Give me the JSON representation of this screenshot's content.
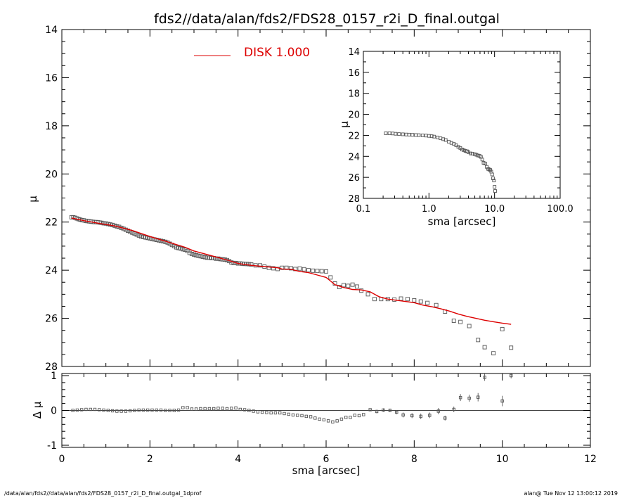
{
  "title": "fds2//data/alan/fds2/FDS28_0157_r2i_D_final.outgal",
  "footer_left": "/data/alan/fds2//data/alan/fds2/FDS28_0157_r2i_D_final.outgal_1dprof",
  "footer_right": "alan@  Tue Nov 12 13:00:12 2019",
  "colors": {
    "model": "#dd0000",
    "axes": "#000000",
    "points": "#555555"
  },
  "chart_data": [
    {
      "type": "scatter",
      "panel": "main",
      "title": "fds2//data/alan/fds2/FDS28_0157_r2i_D_final.outgal",
      "xlabel": "",
      "ylabel": "μ",
      "xlim": [
        0,
        12
      ],
      "ylim": [
        28,
        14
      ],
      "yinverted": true,
      "y_ticks": [
        "14",
        "16",
        "18",
        "20",
        "22",
        "24",
        "26",
        "28"
      ],
      "legend": {
        "label": "DISK  1.000",
        "placement": "top-left"
      },
      "series": [
        {
          "name": "data",
          "marker": "square",
          "x": [
            0.22,
            0.26,
            0.3,
            0.34,
            0.38,
            0.42,
            0.46,
            0.5,
            0.54,
            0.58,
            0.62,
            0.66,
            0.7,
            0.74,
            0.78,
            0.82,
            0.86,
            0.9,
            0.95,
            1.0,
            1.05,
            1.1,
            1.15,
            1.2,
            1.25,
            1.3,
            1.35,
            1.4,
            1.45,
            1.5,
            1.55,
            1.6,
            1.65,
            1.7,
            1.75,
            1.8,
            1.85,
            1.9,
            1.95,
            2.0,
            2.05,
            2.1,
            2.15,
            2.2,
            2.25,
            2.3,
            2.35,
            2.4,
            2.45,
            2.5,
            2.55,
            2.6,
            2.65,
            2.7,
            2.75,
            2.8,
            2.85,
            2.9,
            2.95,
            3.0,
            3.05,
            3.1,
            3.15,
            3.2,
            3.25,
            3.3,
            3.35,
            3.4,
            3.45,
            3.5,
            3.55,
            3.6,
            3.65,
            3.7,
            3.75,
            3.8,
            3.85,
            3.9,
            3.95,
            4.0,
            4.05,
            4.1,
            4.15,
            4.2,
            4.25,
            4.3,
            4.4,
            4.5,
            4.6,
            4.7,
            4.8,
            4.9,
            5.0,
            5.1,
            5.2,
            5.3,
            5.4,
            5.5,
            5.6,
            5.7,
            5.8,
            5.9,
            6.0,
            6.1,
            6.2,
            6.3,
            6.4,
            6.5,
            6.6,
            6.7,
            6.8,
            6.95,
            7.1,
            7.25,
            7.4,
            7.55,
            7.7,
            7.85,
            8.0,
            8.15,
            8.3,
            8.5,
            8.7,
            8.9,
            9.05,
            9.25,
            9.45,
            9.6,
            9.8,
            10.0,
            10.2
          ],
          "y": [
            21.8,
            21.8,
            21.82,
            21.85,
            21.88,
            21.9,
            21.92,
            21.93,
            21.95,
            21.96,
            21.97,
            21.98,
            21.99,
            22.0,
            22.0,
            22.01,
            22.02,
            22.03,
            22.05,
            22.06,
            22.08,
            22.1,
            22.12,
            22.15,
            22.18,
            22.2,
            22.24,
            22.28,
            22.32,
            22.36,
            22.4,
            22.44,
            22.48,
            22.52,
            22.56,
            22.6,
            22.62,
            22.64,
            22.66,
            22.68,
            22.7,
            22.72,
            22.74,
            22.76,
            22.78,
            22.8,
            22.82,
            22.85,
            22.9,
            22.95,
            23.0,
            23.05,
            23.08,
            23.1,
            23.13,
            23.15,
            23.2,
            23.28,
            23.32,
            23.35,
            23.38,
            23.4,
            23.42,
            23.44,
            23.46,
            23.48,
            23.48,
            23.5,
            23.5,
            23.52,
            23.52,
            23.54,
            23.55,
            23.56,
            23.58,
            23.62,
            23.68,
            23.7,
            23.7,
            23.72,
            23.72,
            23.73,
            23.74,
            23.74,
            23.75,
            23.76,
            23.8,
            23.8,
            23.85,
            23.9,
            23.92,
            23.95,
            23.9,
            23.9,
            23.92,
            23.95,
            23.93,
            23.96,
            24.0,
            24.02,
            24.03,
            24.04,
            24.05,
            24.3,
            24.55,
            24.7,
            24.62,
            24.65,
            24.6,
            24.68,
            24.85,
            25.0,
            25.2,
            25.2,
            25.2,
            25.22,
            25.18,
            25.2,
            25.25,
            25.3,
            25.36,
            25.45,
            25.72,
            26.1,
            26.15,
            26.32,
            26.9,
            27.2,
            27.45,
            26.45,
            27.22
          ]
        },
        {
          "name": "DISK  1.000",
          "marker": "line",
          "x": [
            0.22,
            0.5,
            0.8,
            1.2,
            1.6,
            2.0,
            2.4,
            2.8,
            3.0,
            3.2,
            3.5,
            3.8,
            4.0,
            4.3,
            4.6,
            4.9,
            5.0,
            5.2,
            5.4,
            5.6,
            5.8,
            6.0,
            6.1,
            6.2,
            6.4,
            6.6,
            6.8,
            7.0,
            7.2,
            7.4,
            7.6,
            7.8,
            8.0,
            8.2,
            8.4,
            8.6,
            8.8,
            9.0,
            9.2,
            9.4,
            9.6,
            9.8,
            10.0,
            10.2
          ],
          "y": [
            21.83,
            21.94,
            22.04,
            22.16,
            22.35,
            22.6,
            22.82,
            23.05,
            23.2,
            23.3,
            23.45,
            23.6,
            23.72,
            23.8,
            23.85,
            23.9,
            23.95,
            23.96,
            24.05,
            24.1,
            24.2,
            24.3,
            24.45,
            24.6,
            24.72,
            24.8,
            24.82,
            24.9,
            25.1,
            25.2,
            25.25,
            25.3,
            25.35,
            25.45,
            25.52,
            25.6,
            25.7,
            25.82,
            25.92,
            26.0,
            26.08,
            26.14,
            26.2,
            26.25
          ]
        }
      ]
    },
    {
      "type": "scatter",
      "panel": "residual",
      "xlabel": "sma [arcsec]",
      "ylabel": "Δ μ",
      "xlim": [
        0,
        12
      ],
      "ylim": [
        -1.0,
        1.0
      ],
      "x_ticks": [
        "0",
        "2",
        "4",
        "6",
        "8",
        "10",
        "12"
      ],
      "y_ticks": [
        "-1",
        "0",
        "1"
      ],
      "series": [
        {
          "name": "residual",
          "marker": "square_errorbar",
          "x": [
            0.25,
            0.35,
            0.45,
            0.55,
            0.65,
            0.75,
            0.85,
            0.95,
            1.05,
            1.15,
            1.25,
            1.35,
            1.45,
            1.55,
            1.65,
            1.75,
            1.85,
            1.95,
            2.05,
            2.15,
            2.25,
            2.35,
            2.45,
            2.55,
            2.65,
            2.75,
            2.85,
            2.95,
            3.05,
            3.15,
            3.25,
            3.35,
            3.45,
            3.55,
            3.65,
            3.75,
            3.85,
            3.95,
            4.05,
            4.15,
            4.25,
            4.35,
            4.45,
            4.55,
            4.65,
            4.75,
            4.85,
            4.95,
            5.05,
            5.15,
            5.25,
            5.35,
            5.45,
            5.55,
            5.65,
            5.75,
            5.85,
            5.95,
            6.05,
            6.15,
            6.25,
            6.35,
            6.45,
            6.55,
            6.65,
            6.75,
            6.85,
            7.0,
            7.15,
            7.3,
            7.45,
            7.6,
            7.75,
            7.95,
            8.15,
            8.35,
            8.55,
            8.7,
            8.9,
            9.05,
            9.25,
            9.45,
            9.6,
            10.0,
            10.2
          ],
          "y": [
            0.0,
            0.01,
            0.02,
            0.03,
            0.03,
            0.03,
            0.02,
            0.01,
            0.0,
            -0.01,
            -0.02,
            -0.02,
            -0.02,
            -0.01,
            0.0,
            0.01,
            0.01,
            0.01,
            0.01,
            0.01,
            0.01,
            0.0,
            0.0,
            0.0,
            0.01,
            0.08,
            0.08,
            0.04,
            0.04,
            0.05,
            0.05,
            0.05,
            0.05,
            0.06,
            0.06,
            0.05,
            0.06,
            0.07,
            0.03,
            0.02,
            0.0,
            -0.02,
            -0.04,
            -0.05,
            -0.06,
            -0.07,
            -0.07,
            -0.07,
            -0.09,
            -0.11,
            -0.13,
            -0.14,
            -0.15,
            -0.17,
            -0.18,
            -0.22,
            -0.25,
            -0.27,
            -0.3,
            -0.33,
            -0.3,
            -0.25,
            -0.2,
            -0.2,
            -0.14,
            -0.15,
            -0.12,
            0.02,
            -0.03,
            0.01,
            0.0,
            -0.05,
            -0.13,
            -0.15,
            -0.17,
            -0.14,
            -0.02,
            -0.22,
            0.03,
            0.37,
            0.35,
            0.38,
            0.95,
            0.27,
            1.0
          ],
          "err": [
            0.01,
            0.01,
            0.01,
            0.01,
            0.01,
            0.01,
            0.01,
            0.01,
            0.01,
            0.01,
            0.01,
            0.01,
            0.01,
            0.01,
            0.01,
            0.01,
            0.01,
            0.01,
            0.01,
            0.01,
            0.01,
            0.01,
            0.01,
            0.01,
            0.01,
            0.02,
            0.02,
            0.01,
            0.01,
            0.01,
            0.01,
            0.01,
            0.01,
            0.01,
            0.01,
            0.01,
            0.01,
            0.01,
            0.01,
            0.01,
            0.01,
            0.01,
            0.01,
            0.01,
            0.01,
            0.01,
            0.01,
            0.01,
            0.01,
            0.01,
            0.01,
            0.01,
            0.01,
            0.01,
            0.01,
            0.01,
            0.01,
            0.01,
            0.01,
            0.01,
            0.01,
            0.01,
            0.01,
            0.01,
            0.01,
            0.01,
            0.01,
            0.03,
            0.05,
            0.05,
            0.05,
            0.06,
            0.07,
            0.07,
            0.08,
            0.08,
            0.09,
            0.07,
            0.08,
            0.1,
            0.1,
            0.12,
            0.1,
            0.15,
            0.08
          ]
        }
      ]
    },
    {
      "type": "scatter",
      "panel": "inset",
      "xlabel": "sma [arcsec]",
      "ylabel": "μ",
      "xscale": "log",
      "xlim": [
        0.1,
        100.0
      ],
      "ylim": [
        28,
        14
      ],
      "yinverted": true,
      "x_ticks": [
        "0.1",
        "1.0",
        "10.0",
        "100.0"
      ],
      "y_ticks": [
        "14",
        "16",
        "18",
        "20",
        "22",
        "24",
        "26",
        "28"
      ],
      "series": [
        {
          "name": "data",
          "marker": "square",
          "x": [
            0.22,
            0.25,
            0.28,
            0.31,
            0.35,
            0.4,
            0.45,
            0.5,
            0.56,
            0.63,
            0.7,
            0.8,
            0.9,
            1.0,
            1.1,
            1.2,
            1.35,
            1.5,
            1.65,
            1.8,
            2.0,
            2.2,
            2.4,
            2.6,
            2.8,
            3.0,
            3.2,
            3.4,
            3.6,
            3.8,
            4.0,
            4.3,
            4.6,
            5.0,
            5.3,
            5.6,
            5.9,
            6.2,
            6.5,
            6.8,
            7.2,
            7.6,
            8.0,
            8.3,
            8.6,
            8.9,
            9.2,
            9.5,
            9.8,
            10.0,
            10.2
          ],
          "y": [
            21.8,
            21.8,
            21.82,
            21.85,
            21.88,
            21.9,
            21.92,
            21.93,
            21.95,
            21.97,
            21.98,
            22.0,
            22.02,
            22.05,
            22.08,
            22.12,
            22.2,
            22.28,
            22.36,
            22.44,
            22.6,
            22.72,
            22.82,
            22.95,
            23.1,
            23.2,
            23.35,
            23.42,
            23.48,
            23.52,
            23.6,
            23.72,
            23.74,
            23.8,
            23.85,
            23.92,
            23.95,
            24.05,
            24.3,
            24.62,
            24.68,
            25.0,
            25.2,
            25.25,
            25.3,
            25.45,
            25.72,
            26.1,
            26.3,
            26.9,
            27.3
          ]
        }
      ]
    }
  ]
}
